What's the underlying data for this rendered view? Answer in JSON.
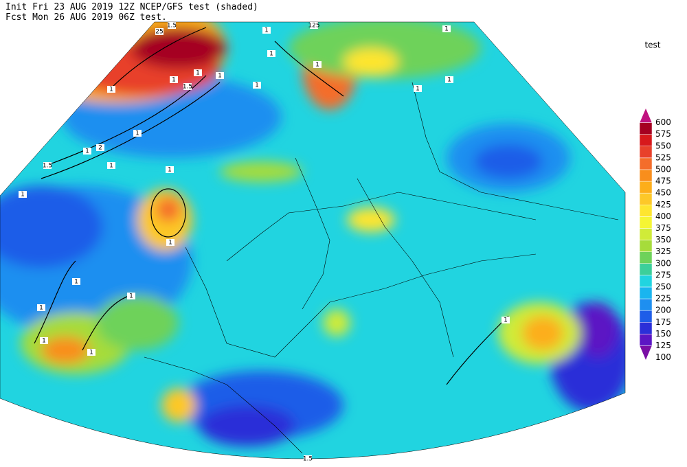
{
  "header": {
    "line1": "Init  Fri 23 AUG 2019 12Z   NCEP/GFS test (shaded)",
    "line2": "Fcst Mon 26 AUG 2019 06Z test."
  },
  "legend": {
    "title": "test",
    "levels": [
      100,
      125,
      150,
      175,
      200,
      225,
      250,
      275,
      300,
      325,
      350,
      375,
      400,
      425,
      450,
      475,
      500,
      525,
      550,
      575,
      600
    ],
    "colors": [
      "#7a0fa5",
      "#5c16c4",
      "#2b2fd8",
      "#1e5de8",
      "#1e8ff0",
      "#1ab5ef",
      "#21d4e0",
      "#3ccf9a",
      "#6ed25a",
      "#a6dc3b",
      "#d0eb38",
      "#f5f534",
      "#fee52f",
      "#fdc828",
      "#fdae1a",
      "#f98e1c",
      "#f46d2b",
      "#e8412b",
      "#d7191c",
      "#a50021",
      "#c0127f"
    ]
  },
  "contour_labels": [
    "1.5",
    "25",
    "125",
    "1",
    "1",
    "1",
    "1",
    "1",
    "1.5",
    "1",
    "1",
    "1",
    "2",
    "1.5",
    "1",
    "1",
    "1",
    "1",
    "1",
    "1",
    "1",
    "1",
    "1",
    "1",
    "1",
    "1",
    "1",
    "1",
    "1",
    "1.5"
  ]
}
